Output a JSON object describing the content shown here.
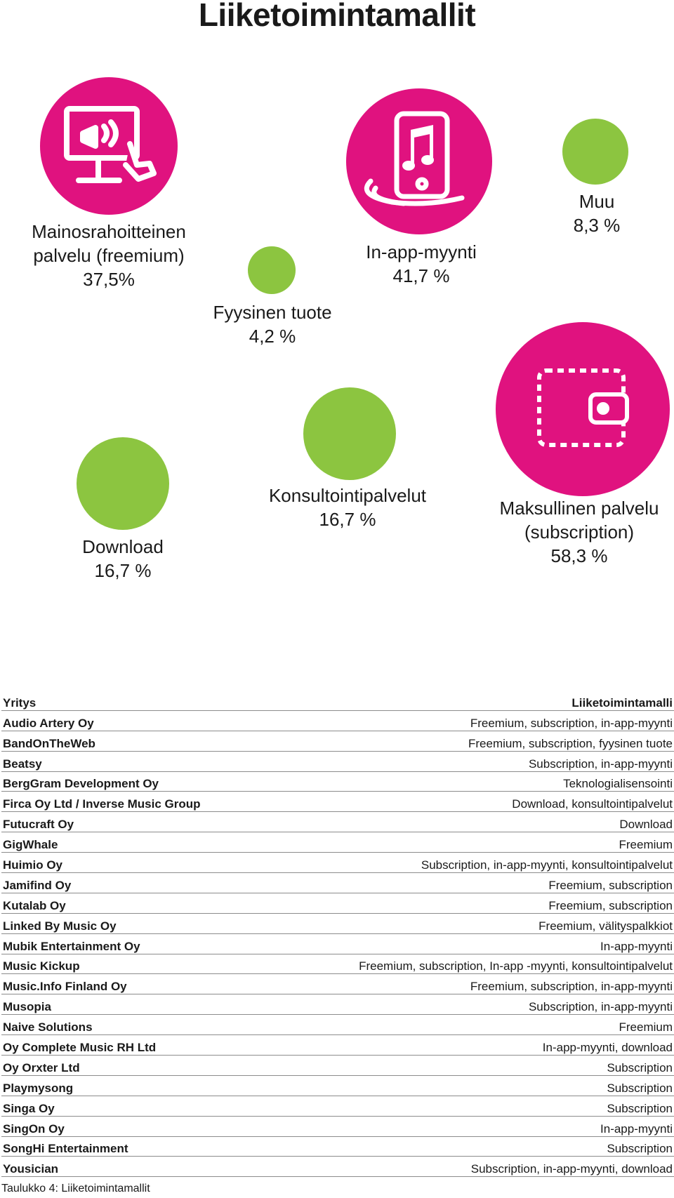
{
  "title": "Liiketoimintamallit",
  "chart_data": {
    "type": "bubble",
    "title": "Liiketoimintamallit",
    "unit": "%",
    "accent_color": "#e0127f",
    "secondary_color": "#8cc540",
    "bubbles": [
      {
        "key": "freemium",
        "line1": "Mainosrahoitteinen",
        "line2": "palvelu (freemium)",
        "value_text": "37,5%",
        "value": 37.5,
        "icon": "billboard-ad-icon"
      },
      {
        "key": "physical",
        "line1": "Fyysinen tuote",
        "line2": "",
        "value_text": "4,2 %",
        "value": 4.2,
        "icon": ""
      },
      {
        "key": "inapp",
        "line1": "In-app-myynti",
        "line2": "",
        "value_text": "41,7 %",
        "value": 41.7,
        "icon": "phone-music-icon"
      },
      {
        "key": "other",
        "line1": "Muu",
        "line2": "",
        "value_text": "8,3 %",
        "value": 8.3,
        "icon": ""
      },
      {
        "key": "download",
        "line1": "Download",
        "line2": "",
        "value_text": "16,7 %",
        "value": 16.7,
        "icon": ""
      },
      {
        "key": "consulting",
        "line1": "Konsultointipalvelut",
        "line2": "",
        "value_text": "16,7 %",
        "value": 16.7,
        "icon": ""
      },
      {
        "key": "subscription",
        "line1": "Maksullinen palvelu",
        "line2": "(subscription)",
        "value_text": "58,3 %",
        "value": 58.3,
        "icon": "wallet-icon"
      }
    ]
  },
  "table": {
    "headers": [
      "Yritys",
      "Liiketoimintamalli"
    ],
    "rows": [
      [
        "Audio Artery Oy",
        "Freemium, subscription, in-app-myynti"
      ],
      [
        "BandOnTheWeb",
        "Freemium, subscription, fyysinen tuote"
      ],
      [
        "Beatsy",
        "Subscription, in-app-myynti"
      ],
      [
        "BergGram Development Oy",
        "Teknologialisensointi"
      ],
      [
        "Firca Oy Ltd / Inverse Music Group",
        "Download, konsultointipalvelut"
      ],
      [
        "Futucraft Oy",
        "Download"
      ],
      [
        "GigWhale",
        "Freemium"
      ],
      [
        "Huimio Oy",
        "Subscription, in-app-myynti, konsultointipalvelut"
      ],
      [
        "Jamifind Oy",
        "Freemium, subscription"
      ],
      [
        "Kutalab Oy",
        "Freemium, subscription"
      ],
      [
        "Linked By Music Oy",
        "Freemium, välityspalkkiot"
      ],
      [
        "Mubik Entertainment Oy",
        "In-app-myynti"
      ],
      [
        "Music Kickup",
        "Freemium, subscription, In-app -myynti, konsultointipalvelut"
      ],
      [
        "Music.Info Finland Oy",
        "Freemium, subscription, in-app-myynti"
      ],
      [
        "Musopia",
        "Subscription, in-app-myynti"
      ],
      [
        "Naive Solutions",
        "Freemium"
      ],
      [
        "Oy Complete Music RH Ltd",
        "In-app-myynti, download"
      ],
      [
        "Oy Orxter Ltd",
        "Subscription"
      ],
      [
        "Playmysong",
        "Subscription"
      ],
      [
        "Singa Oy",
        "Subscription"
      ],
      [
        "SingOn Oy",
        "In-app-myynti"
      ],
      [
        "SongHi Entertainment",
        "Subscription"
      ],
      [
        "Yousician",
        "Subscription, in-app-myynti, download"
      ]
    ],
    "caption": "Taulukko 4: Liiketoimintamallit"
  }
}
